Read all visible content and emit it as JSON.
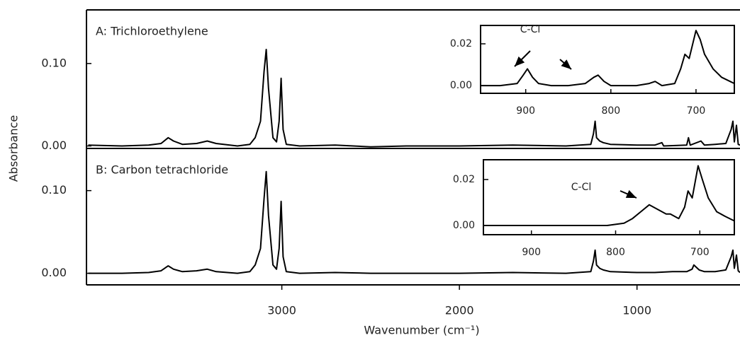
{
  "chart_data": [
    {
      "type": "line",
      "title": "A: Trichloroethylene",
      "ylabel": "Absorbance",
      "color": "#000000",
      "xlim": [
        4100,
        420
      ],
      "ylim": [
        -0.003,
        0.165
      ],
      "yticks": [
        {
          "value": 0,
          "label": "0.00"
        },
        {
          "value": 0.1,
          "label": "0.10"
        }
      ],
      "x": [
        4090,
        3900,
        3750,
        3680,
        3640,
        3610,
        3560,
        3480,
        3420,
        3370,
        3250,
        3180,
        3150,
        3120,
        3100,
        3088,
        3075,
        3050,
        3030,
        3015,
        3004,
        2993,
        2975,
        2900,
        2700,
        2500,
        2300,
        2000,
        1700,
        1400,
        1260,
        1245,
        1236,
        1228,
        1210,
        1190,
        1150,
        1000,
        900,
        860,
        850,
        720,
        710,
        700,
        640,
        620,
        560,
        500,
        470,
        460,
        452,
        440,
        430,
        420
      ],
      "values": [
        0.001,
        0.0,
        0.001,
        0.003,
        0.01,
        0.006,
        0.002,
        0.003,
        0.006,
        0.003,
        0.0,
        0.002,
        0.01,
        0.03,
        0.09,
        0.117,
        0.07,
        0.01,
        0.005,
        0.03,
        0.082,
        0.02,
        0.002,
        0.0,
        0.001,
        -0.001,
        0.0,
        0.0,
        0.001,
        0.0,
        0.002,
        0.015,
        0.03,
        0.01,
        0.006,
        0.004,
        0.002,
        0.001,
        0.001,
        0.004,
        0.0,
        0.001,
        0.01,
        0.001,
        0.006,
        0.001,
        0.002,
        0.003,
        0.02,
        0.03,
        0.005,
        0.025,
        0.002,
        0.001
      ]
    },
    {
      "type": "line",
      "title": "B: Carbon tetrachloride",
      "xlabel": "Wavenumber (cm⁻¹)",
      "color": "#000000",
      "xlim": [
        4100,
        420
      ],
      "ylim": [
        -0.014,
        0.151
      ],
      "xticks": [
        3000,
        2000,
        1000
      ],
      "yticks": [
        {
          "value": 0,
          "label": "0.00"
        },
        {
          "value": 0.1,
          "label": "0.10"
        }
      ],
      "x": [
        4090,
        3900,
        3750,
        3680,
        3640,
        3610,
        3560,
        3480,
        3420,
        3370,
        3250,
        3180,
        3150,
        3120,
        3100,
        3088,
        3075,
        3050,
        3030,
        3015,
        3004,
        2993,
        2975,
        2900,
        2700,
        2500,
        2300,
        2000,
        1700,
        1400,
        1260,
        1245,
        1236,
        1228,
        1210,
        1190,
        1150,
        1000,
        900,
        800,
        720,
        690,
        680,
        650,
        620,
        560,
        500,
        470,
        460,
        452,
        440,
        430,
        420
      ],
      "values": [
        0.0,
        0.0,
        0.001,
        0.003,
        0.009,
        0.005,
        0.002,
        0.003,
        0.005,
        0.002,
        0.0,
        0.002,
        0.01,
        0.03,
        0.09,
        0.123,
        0.07,
        0.01,
        0.005,
        0.03,
        0.087,
        0.02,
        0.002,
        0.0,
        0.001,
        0.0,
        0.0,
        0.0,
        0.001,
        0.0,
        0.002,
        0.015,
        0.028,
        0.01,
        0.006,
        0.004,
        0.002,
        0.001,
        0.001,
        0.002,
        0.002,
        0.005,
        0.01,
        0.004,
        0.002,
        0.002,
        0.004,
        0.02,
        0.028,
        0.006,
        0.022,
        0.003,
        0.001
      ]
    },
    {
      "type": "line",
      "annotation": "C-Cl",
      "color": "#000000",
      "xlim": [
        953,
        655
      ],
      "ylim": [
        -0.0037,
        0.0288
      ],
      "xticks": [
        900,
        800,
        700
      ],
      "yticks": [
        {
          "value": 0,
          "label": "0.00"
        },
        {
          "value": 0.02,
          "label": "0.02"
        }
      ],
      "x": [
        953,
        930,
        910,
        903,
        898,
        892,
        885,
        870,
        850,
        830,
        820,
        815,
        808,
        800,
        790,
        770,
        755,
        748,
        740,
        725,
        718,
        713,
        708,
        700,
        695,
        690,
        680,
        670,
        660,
        655
      ],
      "values": [
        0.0,
        0.0,
        0.001,
        0.005,
        0.008,
        0.004,
        0.001,
        0.0,
        0.0,
        0.001,
        0.004,
        0.005,
        0.002,
        0.0,
        0.0,
        0.0,
        0.001,
        0.002,
        0.0,
        0.001,
        0.008,
        0.015,
        0.013,
        0.0264,
        0.022,
        0.015,
        0.008,
        0.004,
        0.002,
        0.001
      ]
    },
    {
      "type": "line",
      "annotation": "C-Cl",
      "color": "#000000",
      "xlim": [
        957,
        659
      ],
      "ylim": [
        -0.004,
        0.0286
      ],
      "xticks": [
        900,
        800,
        700
      ],
      "yticks": [
        {
          "value": 0,
          "label": "0.00"
        },
        {
          "value": 0.02,
          "label": "0.02"
        }
      ],
      "x": [
        957,
        920,
        880,
        840,
        810,
        790,
        780,
        770,
        760,
        750,
        740,
        735,
        725,
        718,
        714,
        709,
        702,
        697,
        690,
        680,
        670,
        659
      ],
      "values": [
        0.0,
        0.0,
        0.0,
        0.0,
        0.0,
        0.001,
        0.003,
        0.006,
        0.009,
        0.007,
        0.005,
        0.005,
        0.003,
        0.008,
        0.015,
        0.012,
        0.026,
        0.02,
        0.012,
        0.006,
        0.004,
        0.002
      ]
    }
  ]
}
